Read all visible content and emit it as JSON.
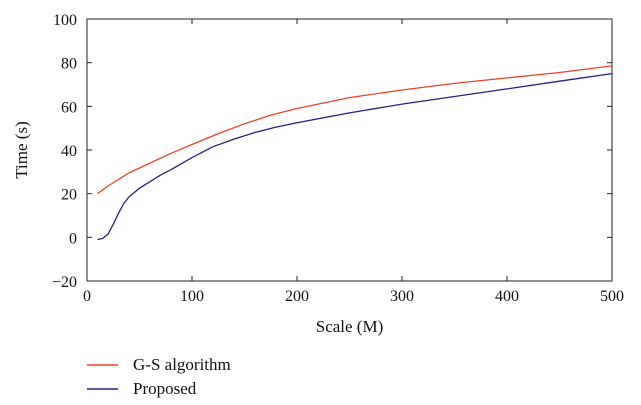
{
  "chart_data": {
    "type": "line",
    "xlabel": "Scale (M)",
    "ylabel": "Time (s)",
    "xlim": [
      0,
      500
    ],
    "ylim": [
      -20,
      100
    ],
    "x_ticks": [
      "0",
      "100",
      "200",
      "300",
      "400",
      "500"
    ],
    "y_ticks": [
      "100",
      "80",
      "60",
      "40",
      "20",
      "0",
      "−20"
    ],
    "grid": false,
    "legend_position": "bottom-left, below plot",
    "series": [
      {
        "name": "G-S algorithm",
        "color": "#e8432a",
        "x": [
          10,
          20,
          40,
          60,
          80,
          100,
          125,
          150,
          175,
          200,
          250,
          300,
          350,
          400,
          450,
          500
        ],
        "y": [
          20,
          23.5,
          29.5,
          34,
          38.5,
          42.5,
          47.5,
          52,
          56,
          59,
          64,
          67.5,
          70.5,
          73,
          75.5,
          78.5
        ]
      },
      {
        "name": "Proposed",
        "color": "#23227a",
        "x": [
          10,
          15,
          20,
          25,
          30,
          35,
          40,
          50,
          60,
          70,
          80,
          100,
          120,
          140,
          160,
          180,
          200,
          250,
          300,
          350,
          400,
          450,
          500
        ],
        "y": [
          -1,
          -0.5,
          1.5,
          6,
          11,
          15.5,
          18.5,
          22.5,
          25.5,
          28.5,
          31,
          36.5,
          41.5,
          45,
          48,
          50.5,
          52.5,
          57,
          61,
          64.5,
          68,
          71.5,
          75
        ]
      }
    ]
  }
}
